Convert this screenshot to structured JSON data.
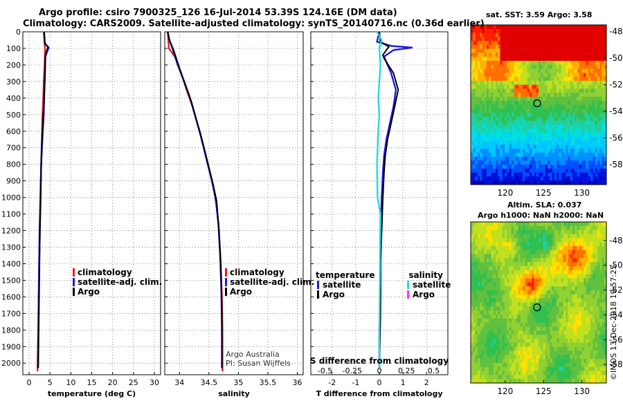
{
  "header": {
    "line1": "Argo profile: csiro 7900325_126 16-Jul-2014 53.39S 124.16E (DM data)",
    "line2": "Climatology: CARS2009. Satellite-adjusted climatology: synTS_20140716.nc (0.36d earlier)"
  },
  "colors": {
    "climatology": "#e62020",
    "satellite_adj": "#1a1adf",
    "argo": "#000000",
    "s_satellite": "#22dddd",
    "s_argo": "#ff33ff",
    "grid": "#555555"
  },
  "right_panels": {
    "sst_title": "sat. SST: 3.59 Argo: 3.58",
    "sla_title1": "Altim. SLA: 0.037",
    "sla_title2": "Argo h1000: NaN h2000: NaN",
    "sst_map": {
      "type": "heatmap",
      "xticks": [
        "120",
        "125",
        "130"
      ],
      "yticks": [
        "-48",
        "-50",
        "-52",
        "-54",
        "-56",
        "-58"
      ],
      "xlim": [
        115.5,
        133.2
      ],
      "ylim": [
        -59.5,
        -47.5
      ],
      "marker": {
        "lon": 124.16,
        "lat": -53.39
      }
    },
    "sla_map": {
      "type": "heatmap",
      "xticks": [
        "120",
        "125",
        "130"
      ],
      "yticks": [
        "-48",
        "-50",
        "-52",
        "-54",
        "-56",
        "-58"
      ],
      "xlim": [
        115.5,
        133.2
      ],
      "ylim": [
        -59.5,
        -46.5
      ],
      "marker": {
        "lon": 124.16,
        "lat": -53.39
      }
    },
    "watermark": "©IMOS 13-Dec-2018 19:57:25"
  },
  "chart_data": [
    {
      "type": "line",
      "name": "temperature",
      "xlabel": "temperature (deg C)",
      "xlim": [
        -1.5,
        31.5
      ],
      "xticks": [
        0,
        5,
        10,
        15,
        20,
        25,
        30
      ],
      "ylim": [
        2070,
        0
      ],
      "yticks": [
        0,
        100,
        200,
        300,
        400,
        500,
        600,
        700,
        800,
        900,
        1000,
        1100,
        1200,
        1300,
        1400,
        1500,
        1600,
        1700,
        1800,
        1900,
        2000
      ],
      "legend": {
        "position": "lower-right",
        "labels": [
          "climatology",
          "satellite-adj. clim.",
          "Argo"
        ]
      },
      "series": [
        {
          "key": "climatology",
          "x": [
            3.5,
            3.8,
            3.7,
            3.5,
            3.4,
            3.2,
            3.1,
            3.0,
            2.9,
            2.8,
            2.7,
            2.6,
            2.4,
            2.3,
            2.2,
            2.1,
            2.0
          ],
          "y": [
            0,
            100,
            200,
            300,
            400,
            500,
            600,
            700,
            800,
            900,
            1000,
            1200,
            1400,
            1600,
            1800,
            1900,
            2050
          ]
        },
        {
          "key": "satellite_adj",
          "x": [
            3.6,
            3.7,
            4.7,
            3.9,
            3.8,
            3.6,
            3.5,
            3.3,
            3.1,
            2.9,
            2.8,
            2.7,
            2.5,
            2.4,
            2.3,
            2.2,
            2.1
          ],
          "y": [
            0,
            70,
            95,
            150,
            250,
            400,
            500,
            600,
            700,
            800,
            900,
            1000,
            1200,
            1400,
            1600,
            1800,
            2030
          ]
        },
        {
          "key": "argo",
          "x": [
            3.6,
            3.8,
            4.5,
            3.9,
            3.8,
            3.6,
            3.4,
            3.2,
            3.0,
            2.9,
            2.8,
            2.6,
            2.5,
            2.4,
            2.3,
            2.2
          ],
          "y": [
            0,
            70,
            90,
            140,
            250,
            400,
            500,
            600,
            700,
            800,
            1000,
            1200,
            1400,
            1600,
            1800,
            2030
          ]
        }
      ]
    },
    {
      "type": "line",
      "name": "salinity",
      "xlabel": "salinity",
      "xlim": [
        33.75,
        36.1
      ],
      "xticks": [
        34,
        34.5,
        35,
        35.5,
        36
      ],
      "ylim": [
        2070,
        0
      ],
      "legend": {
        "position": "lower-right",
        "labels": [
          "climatology",
          "satellite-adj. clim.",
          "Argo"
        ]
      },
      "annotation": [
        "Argo Australia",
        "PI: Susan Wijffels"
      ],
      "series": [
        {
          "key": "climatology",
          "x": [
            33.8,
            33.82,
            33.92,
            34.03,
            34.12,
            34.22,
            34.3,
            34.38,
            34.45,
            34.52,
            34.58,
            34.63,
            34.67,
            34.7,
            34.72,
            34.73,
            34.73
          ],
          "y": [
            0,
            100,
            150,
            250,
            350,
            450,
            550,
            650,
            750,
            850,
            950,
            1050,
            1200,
            1400,
            1600,
            1800,
            2050
          ]
        },
        {
          "key": "satellite_adj",
          "x": [
            33.8,
            33.83,
            33.88,
            33.97,
            34.08,
            34.18,
            34.26,
            34.34,
            34.41,
            34.48,
            34.55,
            34.61,
            34.66,
            34.69,
            34.71,
            34.72,
            34.72
          ],
          "y": [
            0,
            50,
            100,
            200,
            300,
            400,
            500,
            600,
            700,
            800,
            900,
            1000,
            1150,
            1350,
            1550,
            1800,
            2030
          ]
        },
        {
          "key": "argo",
          "x": [
            33.8,
            33.83,
            33.9,
            34.0,
            34.1,
            34.2,
            34.28,
            34.36,
            34.43,
            34.5,
            34.57,
            34.63,
            34.67,
            34.7,
            34.72,
            34.72
          ],
          "y": [
            0,
            50,
            110,
            220,
            320,
            420,
            520,
            620,
            720,
            820,
            920,
            1020,
            1200,
            1400,
            1700,
            2030
          ]
        }
      ]
    },
    {
      "type": "line",
      "name": "difference",
      "xlabel": "T difference from climatology",
      "xlim": [
        -2.9,
        2.9
      ],
      "xticks": [
        -2,
        -1,
        0,
        1,
        2
      ],
      "top_label": "S difference from climatology",
      "top_ticks": [
        "-0.5",
        "-0.25",
        "0",
        "0.25",
        "0.5"
      ],
      "top_tick_values": [
        -0.5,
        -0.25,
        0,
        0.25,
        0.5
      ],
      "ylim": [
        2070,
        0
      ],
      "legend_left": {
        "title": "temperature",
        "labels": [
          "satellite",
          "Argo"
        ]
      },
      "legend_right": {
        "title": "salinity",
        "labels": [
          "satellite",
          "Argo"
        ]
      },
      "series": [
        {
          "key": "t_satellite",
          "x": [
            0.0,
            -0.1,
            0.5,
            1.4,
            0.6,
            0.2,
            0.5,
            0.7,
            0.6,
            0.45,
            0.3,
            0.2,
            0.15,
            0.1,
            0.05,
            0.05,
            0.05,
            0.0,
            0.0
          ],
          "y": [
            0,
            60,
            85,
            95,
            110,
            150,
            250,
            350,
            450,
            550,
            650,
            750,
            850,
            1000,
            1200,
            1400,
            1600,
            1800,
            2030
          ]
        },
        {
          "key": "t_argo",
          "x": [
            0.0,
            0.05,
            0.4,
            0.15,
            0.2,
            0.6,
            0.8,
            0.65,
            0.5,
            0.35,
            0.25,
            0.2,
            0.15,
            0.1,
            0.05,
            0.05,
            0.0
          ],
          "y": [
            0,
            60,
            90,
            140,
            160,
            250,
            350,
            450,
            550,
            650,
            750,
            850,
            1000,
            1200,
            1400,
            1700,
            2030
          ]
        },
        {
          "key": "s_satellite",
          "x": [
            -0.1,
            0.1,
            0.0,
            0.05,
            0.0,
            -0.05,
            0.0,
            -0.05,
            -0.1,
            -0.08,
            0.05,
            0.03,
            0.02,
            0.0,
            0.0
          ],
          "y": [
            0,
            50,
            100,
            200,
            300,
            400,
            500,
            600,
            800,
            1000,
            1100,
            1300,
            1500,
            1800,
            2030
          ]
        }
      ]
    }
  ]
}
